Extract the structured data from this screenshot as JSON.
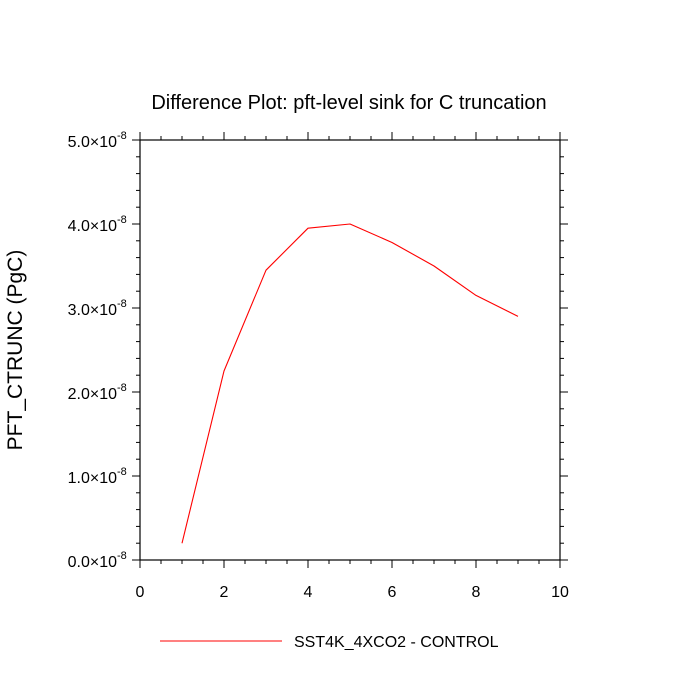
{
  "chart_data": {
    "type": "line",
    "title": "Difference Plot: pft-level sink for C truncation",
    "xlabel": "",
    "ylabel": "PFT_CTRUNC  (PgC)",
    "xlim": [
      0,
      10
    ],
    "ylim": [
      0,
      5e-08
    ],
    "grid": false,
    "legend_position": "bottom",
    "x_ticks": [
      0,
      2,
      4,
      6,
      8,
      10
    ],
    "x_tick_labels": [
      "0",
      "2",
      "4",
      "6",
      "8",
      "10"
    ],
    "y_ticks": [
      0,
      1e-08,
      2e-08,
      3e-08,
      4e-08,
      5e-08
    ],
    "y_tick_labels": [
      {
        "mantissa": "0.0",
        "base": "×10",
        "exp": "-8"
      },
      {
        "mantissa": "1.0",
        "base": "×10",
        "exp": "-8"
      },
      {
        "mantissa": "2.0",
        "base": "×10",
        "exp": "-8"
      },
      {
        "mantissa": "3.0",
        "base": "×10",
        "exp": "-8"
      },
      {
        "mantissa": "4.0",
        "base": "×10",
        "exp": "-8"
      },
      {
        "mantissa": "5.0",
        "base": "×10",
        "exp": "-8"
      }
    ],
    "series": [
      {
        "name": "SST4K_4XCO2 - CONTROL",
        "color": "#ff0000",
        "x": [
          1,
          2,
          3,
          4,
          5,
          6,
          7,
          8,
          9
        ],
        "y": [
          2e-09,
          2.25e-08,
          3.45e-08,
          3.95e-08,
          4e-08,
          3.78e-08,
          3.5e-08,
          3.15e-08,
          2.9e-08
        ]
      }
    ]
  }
}
